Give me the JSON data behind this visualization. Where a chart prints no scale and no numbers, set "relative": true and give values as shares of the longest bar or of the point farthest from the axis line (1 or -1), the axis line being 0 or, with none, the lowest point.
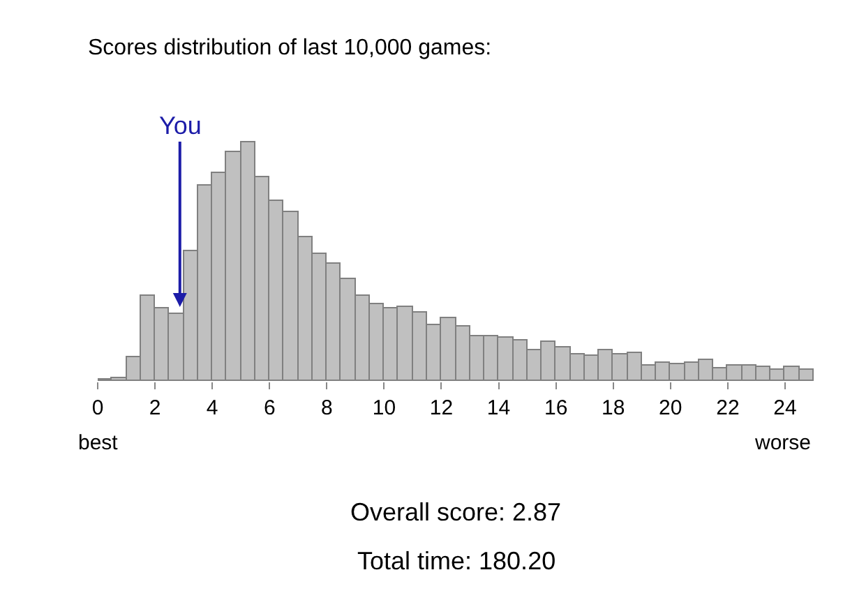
{
  "chart_data": {
    "type": "bar",
    "title": "Scores distribution of last 10,000 games:",
    "relative": true,
    "x": [
      0.25,
      0.75,
      1.25,
      1.75,
      2.25,
      2.75,
      3.25,
      3.75,
      4.25,
      4.75,
      5.25,
      5.75,
      6.25,
      6.75,
      7.25,
      7.75,
      8.25,
      8.75,
      9.25,
      9.75,
      10.25,
      10.75,
      11.25,
      11.75,
      12.25,
      12.75,
      13.25,
      13.75,
      14.25,
      14.75,
      15.25,
      15.75,
      16.25,
      16.75,
      17.25,
      17.75,
      18.25,
      18.75,
      19.25,
      19.75,
      20.25,
      20.75,
      21.25,
      21.75,
      22.25,
      22.75,
      23.25,
      23.75,
      24.25,
      24.75
    ],
    "values": [
      0.006,
      0.012,
      0.099,
      0.359,
      0.302,
      0.281,
      0.543,
      0.82,
      0.873,
      0.956,
      1,
      0.853,
      0.752,
      0.709,
      0.601,
      0.531,
      0.492,
      0.428,
      0.359,
      0.324,
      0.302,
      0.308,
      0.287,
      0.231,
      0.262,
      0.225,
      0.186,
      0.186,
      0.18,
      0.169,
      0.13,
      0.163,
      0.138,
      0.112,
      0.103,
      0.128,
      0.112,
      0.116,
      0.064,
      0.074,
      0.068,
      0.074,
      0.087,
      0.052,
      0.064,
      0.064,
      0.058,
      0.048,
      0.056,
      0.048
    ],
    "color": "#c0c0c0",
    "xlim": [
      0,
      25
    ],
    "xticks": [
      0,
      2,
      4,
      6,
      8,
      10,
      12,
      14,
      16,
      18,
      20,
      22,
      24
    ],
    "grid": false,
    "legend": false,
    "annotations": [
      {
        "text": "You",
        "x": 2.87,
        "y": 0.31
      },
      "best",
      "worse",
      "Overall score: 2.87",
      "Total time: 180.20"
    ]
  }
}
